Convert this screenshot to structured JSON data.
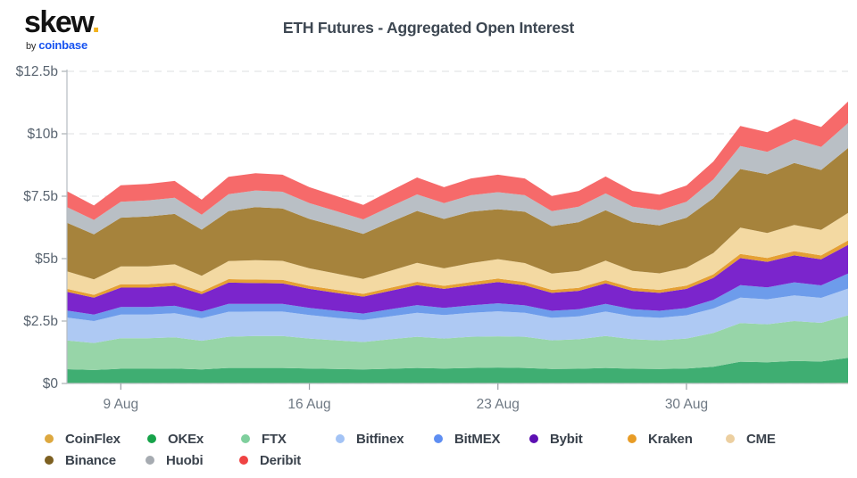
{
  "logo": {
    "brand": "skew",
    "dot": ".",
    "byline_prefix": "by",
    "byline_brand": "coinbase"
  },
  "header": {
    "title": "ETH Futures - Aggregated Open Interest"
  },
  "chart_data": {
    "type": "area",
    "stacked": true,
    "title": "ETH Futures - Aggregated Open Interest",
    "unit": "USD billions",
    "ylim": [
      0,
      12.5
    ],
    "grid": "dashed horizontal gridlines, light gray",
    "legend_position": "bottom",
    "y_ticks": [
      0,
      2.5,
      5,
      7.5,
      10,
      12.5
    ],
    "y_tick_labels": [
      "$0",
      "$2.5b",
      "$5b",
      "$7.5b",
      "$10b",
      "$12.5b"
    ],
    "x_tick_labels": [
      "9 Aug",
      "16 Aug",
      "23 Aug",
      "30 Aug"
    ],
    "x_tick_indices": [
      2,
      9,
      16,
      23
    ],
    "dates": [
      "7 Aug",
      "8 Aug",
      "9 Aug",
      "10 Aug",
      "11 Aug",
      "12 Aug",
      "13 Aug",
      "14 Aug",
      "15 Aug",
      "16 Aug",
      "17 Aug",
      "18 Aug",
      "19 Aug",
      "20 Aug",
      "21 Aug",
      "22 Aug",
      "23 Aug",
      "24 Aug",
      "25 Aug",
      "26 Aug",
      "27 Aug",
      "28 Aug",
      "29 Aug",
      "30 Aug",
      "31 Aug",
      "1 Sep",
      "2 Sep",
      "3 Sep",
      "4 Sep",
      "5 Sep"
    ],
    "series": [
      {
        "name": "CoinFlex",
        "color": "#e6ae4a",
        "dot_color": "#dda83f",
        "values": [
          0.02,
          0.02,
          0.02,
          0.02,
          0.02,
          0.02,
          0.02,
          0.02,
          0.02,
          0.02,
          0.02,
          0.02,
          0.02,
          0.02,
          0.02,
          0.02,
          0.02,
          0.02,
          0.02,
          0.02,
          0.02,
          0.02,
          0.02,
          0.02,
          0.02,
          0.02,
          0.02,
          0.02,
          0.02,
          0.03
        ]
      },
      {
        "name": "OKEx",
        "color": "#3fae72",
        "dot_color": "#17a34a",
        "values": [
          0.55,
          0.52,
          0.57,
          0.57,
          0.58,
          0.54,
          0.6,
          0.6,
          0.6,
          0.58,
          0.56,
          0.54,
          0.57,
          0.6,
          0.58,
          0.6,
          0.62,
          0.6,
          0.56,
          0.57,
          0.6,
          0.57,
          0.56,
          0.58,
          0.65,
          0.85,
          0.83,
          0.88,
          0.86,
          1.0
        ]
      },
      {
        "name": "FTX",
        "color": "#97d5a8",
        "dot_color": "#7fcf9d",
        "values": [
          1.15,
          1.08,
          1.22,
          1.22,
          1.25,
          1.15,
          1.25,
          1.28,
          1.28,
          1.2,
          1.15,
          1.1,
          1.18,
          1.25,
          1.2,
          1.25,
          1.25,
          1.25,
          1.15,
          1.18,
          1.28,
          1.18,
          1.15,
          1.2,
          1.35,
          1.55,
          1.52,
          1.6,
          1.55,
          1.7
        ]
      },
      {
        "name": "Bitfinex",
        "color": "#aec9f3",
        "dot_color": "#a3c3f5",
        "values": [
          0.92,
          0.88,
          0.95,
          0.95,
          0.96,
          0.9,
          1.0,
          0.98,
          0.98,
          0.94,
          0.9,
          0.88,
          0.92,
          0.96,
          0.94,
          0.96,
          1.0,
          0.96,
          0.9,
          0.92,
          0.98,
          0.92,
          0.9,
          0.93,
          0.98,
          1.02,
          1.0,
          1.03,
          1.0,
          1.07
        ]
      },
      {
        "name": "BitMEX",
        "color": "#6d9ceb",
        "dot_color": "#5e8ef2",
        "values": [
          0.28,
          0.26,
          0.3,
          0.3,
          0.3,
          0.27,
          0.32,
          0.31,
          0.31,
          0.29,
          0.28,
          0.26,
          0.28,
          0.31,
          0.29,
          0.3,
          0.32,
          0.3,
          0.28,
          0.28,
          0.31,
          0.28,
          0.28,
          0.29,
          0.35,
          0.5,
          0.48,
          0.52,
          0.5,
          0.6
        ]
      },
      {
        "name": "Bybit",
        "color": "#7b25cc",
        "dot_color": "#5c10b2",
        "values": [
          0.75,
          0.68,
          0.78,
          0.78,
          0.8,
          0.7,
          0.85,
          0.83,
          0.82,
          0.76,
          0.72,
          0.68,
          0.74,
          0.8,
          0.76,
          0.8,
          0.85,
          0.8,
          0.72,
          0.74,
          0.82,
          0.74,
          0.72,
          0.77,
          0.88,
          1.08,
          1.02,
          1.08,
          1.04,
          1.15
        ]
      },
      {
        "name": "Kraken",
        "color": "#e5a034",
        "dot_color": "#e89c26",
        "values": [
          0.12,
          0.11,
          0.13,
          0.13,
          0.13,
          0.11,
          0.14,
          0.14,
          0.14,
          0.12,
          0.12,
          0.11,
          0.12,
          0.13,
          0.12,
          0.13,
          0.14,
          0.13,
          0.12,
          0.12,
          0.13,
          0.12,
          0.12,
          0.13,
          0.14,
          0.17,
          0.16,
          0.17,
          0.16,
          0.18
        ]
      },
      {
        "name": "CME",
        "color": "#f3d9a2",
        "dot_color": "#eccfa0",
        "values": [
          0.7,
          0.62,
          0.72,
          0.72,
          0.73,
          0.62,
          0.72,
          0.78,
          0.76,
          0.7,
          0.65,
          0.6,
          0.68,
          0.76,
          0.7,
          0.76,
          0.78,
          0.76,
          0.65,
          0.68,
          0.78,
          0.68,
          0.66,
          0.72,
          0.85,
          1.05,
          1.0,
          1.05,
          1.02,
          1.1
        ]
      },
      {
        "name": "Binance",
        "color": "#a6833c",
        "dot_color": "#7d6021",
        "values": [
          1.95,
          1.8,
          1.95,
          2.0,
          2.02,
          1.85,
          2.0,
          2.12,
          2.1,
          1.98,
          1.9,
          1.8,
          1.95,
          2.08,
          1.98,
          2.06,
          2.0,
          2.06,
          1.9,
          1.95,
          2.02,
          1.95,
          1.92,
          2.0,
          2.2,
          2.35,
          2.35,
          2.48,
          2.4,
          2.6
        ]
      },
      {
        "name": "Huobi",
        "color": "#b9bfc5",
        "dot_color": "#a6abb1",
        "values": [
          0.62,
          0.58,
          0.64,
          0.64,
          0.65,
          0.6,
          0.68,
          0.67,
          0.67,
          0.63,
          0.6,
          0.58,
          0.62,
          0.66,
          0.63,
          0.66,
          0.68,
          0.66,
          0.6,
          0.62,
          0.67,
          0.62,
          0.61,
          0.64,
          0.75,
          0.92,
          0.9,
          0.95,
          0.92,
          1.0
        ]
      },
      {
        "name": "Deribit",
        "color": "#f66a6a",
        "dot_color": "#ef4343",
        "values": [
          0.64,
          0.58,
          0.66,
          0.66,
          0.67,
          0.6,
          0.7,
          0.69,
          0.68,
          0.64,
          0.61,
          0.58,
          0.63,
          0.68,
          0.64,
          0.67,
          0.7,
          0.67,
          0.61,
          0.63,
          0.68,
          0.63,
          0.62,
          0.65,
          0.72,
          0.8,
          0.78,
          0.82,
          0.8,
          0.86
        ]
      }
    ],
    "colors": {
      "grid": "#e3e5e8",
      "spine": "#b6bcc2",
      "tick": "#9aa0a6",
      "y_label": "#596470",
      "x_label": "#6e7883"
    }
  },
  "legend": {
    "rows": [
      [
        "CoinFlex",
        "OKEx",
        "FTX",
        "Bitfinex",
        "BitMEX",
        "Bybit",
        "Kraken",
        "CME"
      ],
      [
        "Binance",
        "Huobi",
        "Deribit"
      ]
    ]
  }
}
